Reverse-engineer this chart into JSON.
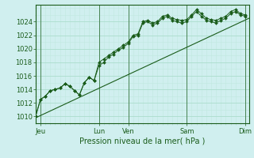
{
  "title": "",
  "xlabel": "Pression niveau de la mer( hPa )",
  "ylabel": "",
  "bg_color": "#d0efef",
  "plot_bg_color": "#d0efef",
  "grid_major_color": "#aaddcc",
  "grid_minor_color": "#c0e8e0",
  "line_color": "#1a5c1a",
  "ylim": [
    1009.0,
    1026.5
  ],
  "xlim": [
    0,
    175
  ],
  "yticks": [
    1010,
    1012,
    1014,
    1016,
    1018,
    1020,
    1022,
    1024
  ],
  "day_labels": [
    "Jeu",
    "",
    "Lun",
    "Ven",
    "",
    "Sam",
    "",
    "Dim"
  ],
  "xtick_labels": [
    "Jeu",
    "Lun",
    "Ven",
    "Sam",
    "Dim"
  ],
  "xtick_positions": [
    4,
    52,
    76,
    124,
    172
  ],
  "vline_positions": [
    4,
    52,
    76,
    124,
    172
  ],
  "trend_line": [
    [
      0,
      1009.8
    ],
    [
      175,
      1024.5
    ]
  ],
  "line1": [
    [
      0,
      1010.0
    ],
    [
      4,
      1012.5
    ],
    [
      8,
      1013.0
    ],
    [
      12,
      1013.8
    ],
    [
      16,
      1014.0
    ],
    [
      20,
      1014.2
    ],
    [
      24,
      1014.8
    ],
    [
      28,
      1014.5
    ],
    [
      32,
      1013.8
    ],
    [
      36,
      1013.2
    ],
    [
      40,
      1015.0
    ],
    [
      44,
      1015.8
    ],
    [
      48,
      1015.3
    ],
    [
      52,
      1018.0
    ],
    [
      56,
      1018.5
    ],
    [
      60,
      1019.0
    ],
    [
      64,
      1019.5
    ],
    [
      68,
      1020.0
    ],
    [
      72,
      1020.5
    ],
    [
      76,
      1021.0
    ],
    [
      80,
      1022.0
    ],
    [
      84,
      1022.2
    ],
    [
      88,
      1024.0
    ],
    [
      92,
      1024.2
    ],
    [
      96,
      1023.8
    ],
    [
      100,
      1024.0
    ],
    [
      104,
      1024.8
    ],
    [
      108,
      1025.0
    ],
    [
      112,
      1024.5
    ],
    [
      116,
      1024.3
    ],
    [
      120,
      1024.2
    ],
    [
      124,
      1024.3
    ],
    [
      128,
      1025.0
    ],
    [
      132,
      1025.8
    ],
    [
      136,
      1025.2
    ],
    [
      140,
      1024.5
    ],
    [
      144,
      1024.3
    ],
    [
      148,
      1024.2
    ],
    [
      152,
      1024.5
    ],
    [
      156,
      1024.8
    ],
    [
      160,
      1025.5
    ],
    [
      164,
      1025.8
    ],
    [
      168,
      1025.2
    ],
    [
      172,
      1025.0
    ]
  ],
  "line2": [
    [
      0,
      1010.0
    ],
    [
      4,
      1012.5
    ],
    [
      8,
      1013.0
    ],
    [
      12,
      1013.8
    ],
    [
      16,
      1014.0
    ],
    [
      20,
      1014.2
    ],
    [
      24,
      1014.8
    ],
    [
      28,
      1014.5
    ],
    [
      32,
      1013.8
    ],
    [
      36,
      1013.2
    ],
    [
      40,
      1015.0
    ],
    [
      44,
      1015.8
    ],
    [
      48,
      1015.3
    ],
    [
      52,
      1017.5
    ],
    [
      56,
      1018.0
    ],
    [
      60,
      1018.8
    ],
    [
      64,
      1019.2
    ],
    [
      68,
      1019.8
    ],
    [
      72,
      1020.2
    ],
    [
      76,
      1020.8
    ],
    [
      80,
      1021.8
    ],
    [
      84,
      1022.0
    ],
    [
      88,
      1023.8
    ],
    [
      92,
      1024.0
    ],
    [
      96,
      1023.5
    ],
    [
      100,
      1023.8
    ],
    [
      104,
      1024.5
    ],
    [
      108,
      1024.8
    ],
    [
      112,
      1024.2
    ],
    [
      116,
      1024.0
    ],
    [
      120,
      1023.8
    ],
    [
      124,
      1024.0
    ],
    [
      128,
      1024.8
    ],
    [
      132,
      1025.5
    ],
    [
      136,
      1024.8
    ],
    [
      140,
      1024.2
    ],
    [
      144,
      1024.0
    ],
    [
      148,
      1023.8
    ],
    [
      152,
      1024.2
    ],
    [
      156,
      1024.5
    ],
    [
      160,
      1025.2
    ],
    [
      164,
      1025.5
    ],
    [
      168,
      1025.0
    ],
    [
      172,
      1024.8
    ]
  ]
}
